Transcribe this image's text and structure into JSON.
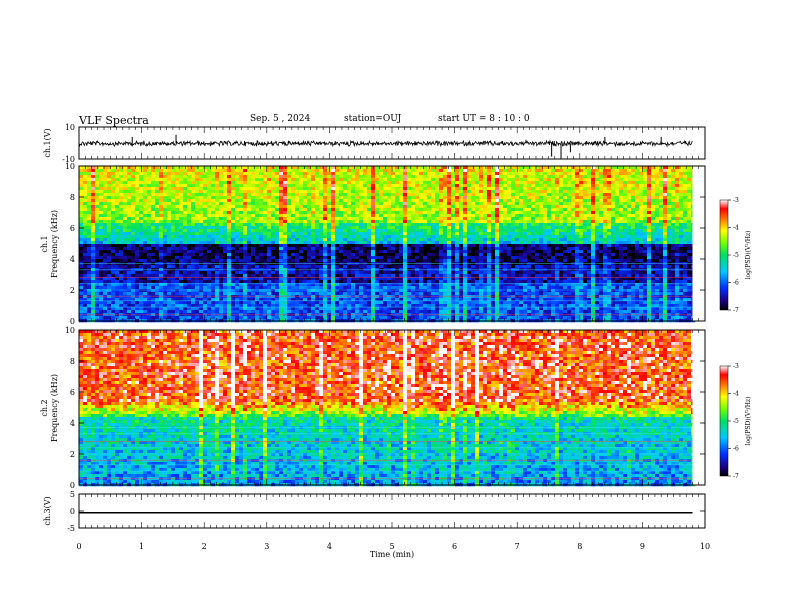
{
  "header": {
    "title": "VLF Spectra",
    "date": "Sep. 5 , 2024",
    "station": "station=OUJ",
    "start": "start UT = 8 : 10 : 0"
  },
  "chart_data": [
    {
      "type": "line",
      "panel": "ch1-waveform",
      "ylabel": "ch.1(V)",
      "ylim": [
        -10,
        10
      ],
      "yticks": [
        "10",
        "-10"
      ],
      "xlim": [
        0,
        10
      ],
      "series": [
        {
          "x": [
            0,
            9.8
          ],
          "values": [
            0,
            0
          ]
        }
      ],
      "note_level": -0.3
    },
    {
      "type": "heatmap",
      "panel": "ch1-spectrogram",
      "ylabel": "ch.1 Frequency (kHz)",
      "ylim": [
        0,
        10
      ],
      "yticks": [
        "0",
        "2",
        "4",
        "6",
        "8",
        "10"
      ],
      "xlim": [
        0,
        10
      ],
      "colorbar": {
        "label": "log(PSD)(V²/Hz)",
        "range": [
          -7,
          -3
        ],
        "ticks": [
          "-3",
          "-4",
          "-5",
          "-6",
          "-7"
        ]
      }
    },
    {
      "type": "heatmap",
      "panel": "ch2-spectrogram",
      "ylabel": "ch.2 Frequency (kHz)",
      "ylim": [
        0,
        10
      ],
      "yticks": [
        "0",
        "2",
        "4",
        "6",
        "8",
        "10"
      ],
      "xlim": [
        0,
        10
      ],
      "colorbar": {
        "label": "log(PSD)(V²/Hz)",
        "range": [
          -7,
          -3
        ],
        "ticks": [
          "-3",
          "-4",
          "-5",
          "-6",
          "-7"
        ]
      }
    },
    {
      "type": "line",
      "panel": "ch3-waveform",
      "ylabel": "ch.3(V)",
      "ylim": [
        -5,
        5
      ],
      "yticks": [
        "5",
        "0",
        "-5"
      ],
      "xlim": [
        0,
        10
      ],
      "series": [
        {
          "x": [
            0,
            9.8
          ],
          "values": [
            -0.5,
            -0.5
          ]
        }
      ]
    }
  ],
  "xaxis": {
    "label": "Time (min)",
    "ticks": [
      "0",
      "1",
      "2",
      "3",
      "4",
      "5",
      "6",
      "7",
      "8",
      "9",
      "10"
    ]
  }
}
